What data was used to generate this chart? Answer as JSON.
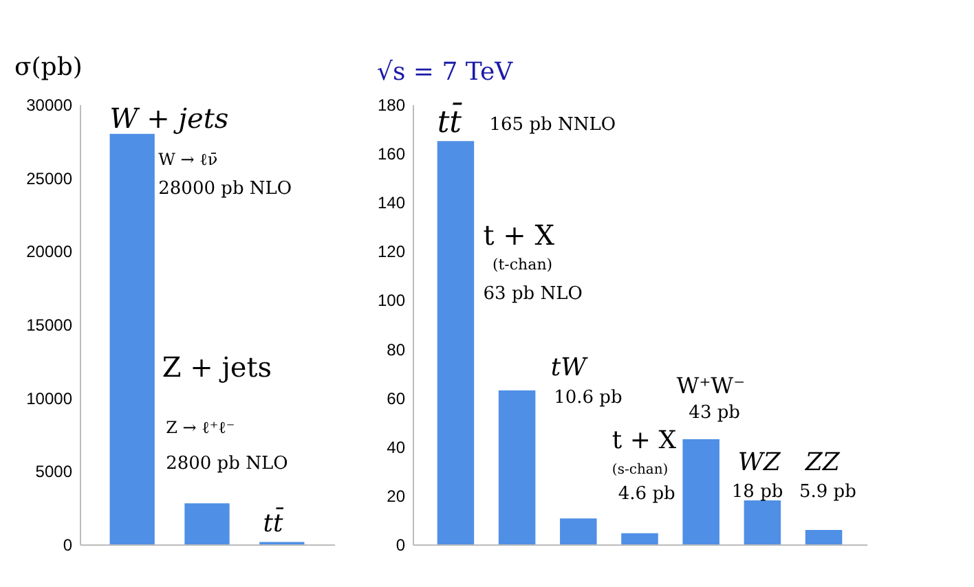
{
  "chart_data": [
    {
      "type": "bar",
      "ylabel": "σ(pb)",
      "categories": [
        null,
        null,
        null
      ],
      "values": [
        28000,
        2800,
        165
      ],
      "color": "#4f8fe6",
      "ylim": [
        0,
        30000
      ],
      "yticks": [
        0,
        5000,
        10000,
        15000,
        20000,
        25000,
        30000
      ],
      "grid": false,
      "legend": false,
      "annotations": [
        "W + jets",
        "W → ℓν̄",
        "28000 pb NLO",
        "Z + jets",
        "Z → ℓ⁺ℓ⁻",
        "2800 pb NLO",
        "tt̄"
      ]
    },
    {
      "type": "bar",
      "title": "√s = 7 TeV",
      "categories": [
        null,
        null,
        null,
        null,
        null,
        null,
        null
      ],
      "values": [
        165,
        63,
        10.6,
        4.6,
        43,
        18,
        5.9
      ],
      "color": "#4f8fe6",
      "ylim": [
        0,
        180
      ],
      "yticks": [
        0,
        20,
        40,
        60,
        80,
        100,
        120,
        140,
        160,
        180
      ],
      "grid": false,
      "legend": false,
      "annotations": [
        "tt̄",
        "165 pb NNLO",
        "t + X",
        "(t-chan)",
        "63 pb NLO",
        "tW",
        "10.6 pb",
        "t + X",
        "(s-chan)",
        "4.6 pb",
        "W⁺W⁻",
        "43 pb",
        "WZ",
        "18 pb",
        "ZZ",
        "5.9 pb"
      ]
    }
  ]
}
